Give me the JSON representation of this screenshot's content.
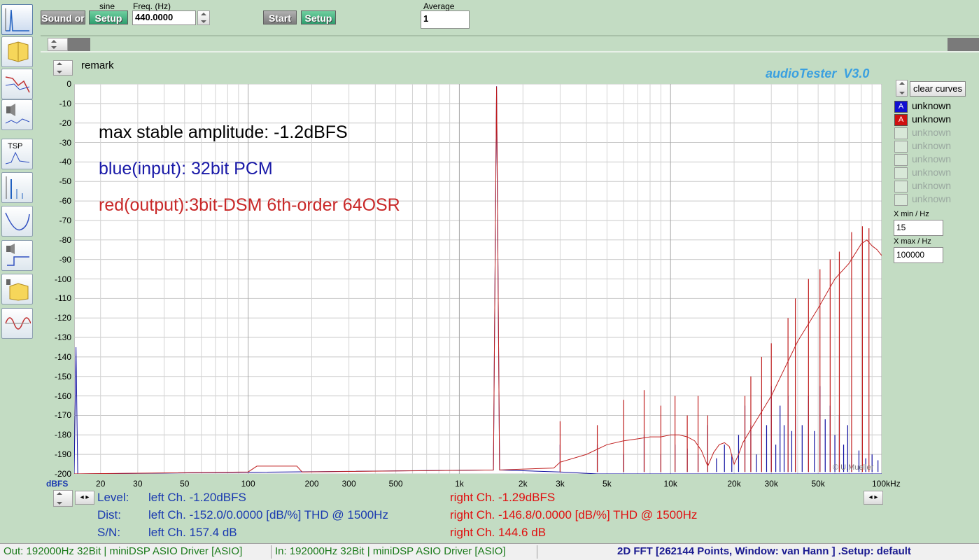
{
  "toolbar": {
    "sound_out_label": "Sound or",
    "signal_type": "sine",
    "setup1_label": "Setup",
    "freq_label": "Freq. (Hz)",
    "freq_value": "440.0000",
    "start_label": "Start",
    "setup2_label": "Setup",
    "average_label": "Average",
    "average_value": "1"
  },
  "plot_header": {
    "remark_label": "remark",
    "brand": "audioTester  V3.0"
  },
  "sidebar": {
    "tools": [
      "spectrum-icon",
      "speaker-book-icon",
      "response-icon",
      "speaker-sweep-icon",
      "tsp-icon",
      "fft-icon",
      "filter-curve-icon",
      "speaker-step-icon",
      "speaker-book2-icon",
      "waveform-icon"
    ],
    "tsp_label": "TSP"
  },
  "legend": {
    "clear_label": "clear curves",
    "items": [
      {
        "marker": "A",
        "label": "unknown",
        "color": "#1010d0",
        "active": true
      },
      {
        "marker": "A",
        "label": "unknown",
        "color": "#d01010",
        "active": true
      },
      {
        "marker": "",
        "label": "unknown",
        "active": false
      },
      {
        "marker": "",
        "label": "unknown",
        "active": false
      },
      {
        "marker": "",
        "label": "unknown",
        "active": false
      },
      {
        "marker": "",
        "label": "unknown",
        "active": false
      },
      {
        "marker": "",
        "label": "unknown",
        "active": false
      },
      {
        "marker": "",
        "label": "unknown",
        "active": false
      }
    ],
    "xmin_label": "X min / Hz",
    "xmin_value": "15",
    "xmax_label": "X max / Hz",
    "xmax_value": "100000"
  },
  "chart_data": {
    "type": "line",
    "ylabel": "dBFS",
    "ylim": [
      -200,
      0
    ],
    "xlim": [
      15,
      100000
    ],
    "xscale": "log",
    "grid": true,
    "y_ticks": [
      "0",
      "-10",
      "-20",
      "-30",
      "-40",
      "-50",
      "-60",
      "-70",
      "-80",
      "-90",
      "-100",
      "-110",
      "-120",
      "-130",
      "-140",
      "-150",
      "-160",
      "-170",
      "-180",
      "-190",
      "-200"
    ],
    "x_ticks": [
      {
        "v": 20,
        "label": "20"
      },
      {
        "v": 30,
        "label": "30"
      },
      {
        "v": 50,
        "label": "50"
      },
      {
        "v": 100,
        "label": "100"
      },
      {
        "v": 200,
        "label": "200"
      },
      {
        "v": 300,
        "label": "300"
      },
      {
        "v": 500,
        "label": "500"
      },
      {
        "v": 1000,
        "label": "1k"
      },
      {
        "v": 2000,
        "label": "2k"
      },
      {
        "v": 3000,
        "label": "3k"
      },
      {
        "v": 5000,
        "label": "5k"
      },
      {
        "v": 10000,
        "label": "10k"
      },
      {
        "v": 20000,
        "label": "20k"
      },
      {
        "v": 30000,
        "label": "30k"
      },
      {
        "v": 50000,
        "label": "50k"
      },
      {
        "v": 100000,
        "label": "100kHz"
      }
    ],
    "annotations": [
      {
        "text": "max stable amplitude: -1.2dBFS",
        "color": "#000000"
      },
      {
        "text": "blue(input): 32bit PCM",
        "color": "#1a1aa8"
      },
      {
        "text": "red(output):3bit-DSM 6th-order 64OSR",
        "color": "#c82828"
      }
    ],
    "copyright": "© U.Mueller",
    "series": [
      {
        "name": "unknown",
        "color": "#1010a0",
        "points": [
          [
            15,
            -200
          ],
          [
            15.3,
            -135
          ],
          [
            15.6,
            -200
          ],
          [
            1450,
            -198
          ],
          [
            1500,
            -1.2
          ],
          [
            1550,
            -198
          ],
          [
            3000,
            -199
          ],
          [
            4500,
            -200
          ],
          [
            20000,
            -200
          ],
          [
            100000,
            -200
          ]
        ],
        "spurs": [
          [
            3000,
            -185
          ],
          [
            4500,
            -185
          ],
          [
            6000,
            -190
          ],
          [
            7500,
            -180
          ],
          [
            9000,
            -190
          ],
          [
            10500,
            -185
          ],
          [
            12000,
            -187
          ],
          [
            13500,
            -190
          ],
          [
            15000,
            -175
          ],
          [
            16500,
            -192
          ],
          [
            18000,
            -185
          ],
          [
            19500,
            -190
          ],
          [
            21000,
            -180
          ],
          [
            22500,
            -165
          ],
          [
            24000,
            -175
          ],
          [
            25500,
            -190
          ],
          [
            27000,
            -160
          ],
          [
            28500,
            -175
          ],
          [
            30000,
            -155
          ],
          [
            31500,
            -185
          ],
          [
            33000,
            -165
          ],
          [
            34500,
            -175
          ],
          [
            36000,
            -160
          ],
          [
            37500,
            -178
          ],
          [
            39000,
            -170
          ],
          [
            42000,
            -175
          ],
          [
            45000,
            -160
          ],
          [
            48000,
            -178
          ],
          [
            51000,
            -155
          ],
          [
            54000,
            -172
          ],
          [
            57000,
            -165
          ],
          [
            60000,
            -180
          ],
          [
            63000,
            -170
          ],
          [
            66000,
            -185
          ],
          [
            69000,
            -175
          ],
          [
            72000,
            -190
          ],
          [
            78000,
            -188
          ],
          [
            84000,
            -192
          ],
          [
            90000,
            -190
          ],
          [
            96000,
            -193
          ]
        ]
      },
      {
        "name": "unknown",
        "color": "#c02020",
        "points": [
          [
            15,
            -200
          ],
          [
            100,
            -199
          ],
          [
            110,
            -196
          ],
          [
            170,
            -196
          ],
          [
            180,
            -199
          ],
          [
            1450,
            -198
          ],
          [
            1500,
            -1.3
          ],
          [
            1550,
            -198
          ],
          [
            2800,
            -197
          ],
          [
            3000,
            -194
          ],
          [
            4000,
            -190
          ],
          [
            5000,
            -185
          ],
          [
            6000,
            -183
          ],
          [
            7000,
            -182
          ],
          [
            8000,
            -181
          ],
          [
            9000,
            -181
          ],
          [
            10000,
            -180
          ],
          [
            11000,
            -180
          ],
          [
            12000,
            -181
          ],
          [
            13000,
            -183
          ],
          [
            14000,
            -188
          ],
          [
            15000,
            -196
          ],
          [
            16000,
            -189
          ],
          [
            17000,
            -185
          ],
          [
            18000,
            -184
          ],
          [
            19000,
            -186
          ],
          [
            20000,
            -195
          ],
          [
            21000,
            -190
          ],
          [
            22000,
            -184
          ],
          [
            25000,
            -174
          ],
          [
            30000,
            -160
          ],
          [
            35000,
            -145
          ],
          [
            40000,
            -132
          ],
          [
            50000,
            -115
          ],
          [
            60000,
            -100
          ],
          [
            70000,
            -92
          ],
          [
            80000,
            -82
          ],
          [
            85000,
            -80
          ],
          [
            90000,
            -83
          ],
          [
            95000,
            -85
          ],
          [
            100000,
            -88
          ]
        ],
        "spurs": [
          [
            3000,
            -173
          ],
          [
            4500,
            -175
          ],
          [
            6000,
            -162
          ],
          [
            7500,
            -157
          ],
          [
            9000,
            -165
          ],
          [
            10500,
            -160
          ],
          [
            12000,
            -170
          ],
          [
            13500,
            -160
          ],
          [
            15000,
            -170
          ],
          [
            22500,
            -160
          ],
          [
            24000,
            -150
          ],
          [
            27000,
            -140
          ],
          [
            30000,
            -133
          ],
          [
            36000,
            -120
          ],
          [
            39000,
            -110
          ],
          [
            45000,
            -100
          ],
          [
            51000,
            -95
          ],
          [
            57000,
            -90
          ],
          [
            63000,
            -86
          ],
          [
            72000,
            -76
          ],
          [
            81000,
            -73
          ],
          [
            87000,
            -74
          ]
        ]
      }
    ]
  },
  "stats": {
    "level_label": "Level:",
    "dist_label": "Dist:",
    "sn_label": "S/N:",
    "left_level": "left Ch. -1.20dBFS",
    "left_dist": "left Ch. -152.0/0.0000 [dB/%] THD @ 1500Hz",
    "left_sn": "left Ch. 157.4 dB",
    "right_level": "right Ch. -1.29dBFS",
    "right_dist": "right Ch. -146.8/0.0000 [dB/%] THD @ 1500Hz",
    "right_sn": "right Ch. 144.6 dB",
    "left_color": "#1a3ab0",
    "right_color": "#e01010"
  },
  "statusbar": {
    "out": "Out: 192000Hz 32Bit  | miniDSP ASIO Driver [ASIO]",
    "in": "In: 192000Hz 32Bit  | miniDSP ASIO Driver [ASIO]",
    "mode": "2D FFT [262144 Points, Window: van Hann ]  .Setup:  default"
  }
}
